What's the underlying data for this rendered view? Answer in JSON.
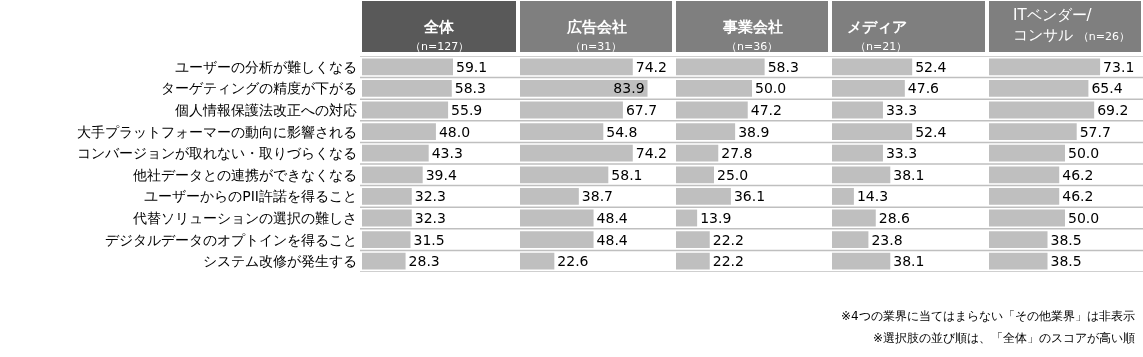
{
  "chart_data": [
    {
      "type": "bar",
      "orientation": "horizontal",
      "title": "全体",
      "subtitle": "（n=127）",
      "categories": [
        "ユーザーの分析が難しくなる",
        "ターゲティングの精度が下がる",
        "個人情報保護法改正への対応",
        "大手プラットフォーマーの動向に影響される",
        "コンバージョンが取れない・取りづらくなる",
        "他社データとの連携ができなくなる",
        "ユーザーからのPII許諾を得ること",
        "代替ソリューションの選択の難しさ",
        "デジタルデータのオプトインを得ること",
        "システム改修が発生する"
      ],
      "values": [
        59.1,
        58.3,
        55.9,
        48.0,
        43.3,
        39.4,
        32.3,
        32.3,
        31.5,
        28.3
      ],
      "value_labels": [
        "59.1",
        "58.3",
        "55.9",
        "48.0",
        "43.3",
        "39.4",
        "32.3",
        "32.3",
        "31.5",
        "28.3"
      ],
      "color": "#bfbfbf",
      "xlim": [
        0,
        100
      ],
      "tick_labels": "y",
      "legend": false
    },
    {
      "type": "bar",
      "orientation": "horizontal",
      "title": "広告会社",
      "subtitle": "（n=31）",
      "values": [
        74.2,
        83.9,
        67.7,
        54.8,
        74.2,
        58.1,
        38.7,
        48.4,
        48.4,
        22.6
      ],
      "value_labels": [
        "74.2",
        "83.9",
        "67.7",
        "54.8",
        "74.2",
        "58.1",
        "38.7",
        "48.4",
        "48.4",
        "22.6"
      ],
      "color": "#bfbfbf",
      "xlim": [
        0,
        100
      ],
      "tick_labels": false,
      "legend": false
    },
    {
      "type": "bar",
      "orientation": "horizontal",
      "title": "事業会社",
      "subtitle": "（n=36）",
      "values": [
        58.3,
        50.0,
        47.2,
        38.9,
        27.8,
        25.0,
        36.1,
        13.9,
        22.2,
        22.2
      ],
      "value_labels": [
        "58.3",
        "50.0",
        "47.2",
        "38.9",
        "27.8",
        "25.0",
        "36.1",
        "13.9",
        "22.2",
        "22.2"
      ],
      "color": "#bfbfbf",
      "xlim": [
        0,
        100
      ],
      "tick_labels": false,
      "legend": false
    },
    {
      "type": "bar",
      "orientation": "horizontal",
      "title": "メディア",
      "subtitle": "（n=21）",
      "values": [
        52.4,
        47.6,
        33.3,
        52.4,
        33.3,
        38.1,
        14.3,
        28.6,
        23.8,
        38.1
      ],
      "value_labels": [
        "52.4",
        "47.6",
        "33.3",
        "52.4",
        "33.3",
        "38.1",
        "14.3",
        "28.6",
        "23.8",
        "38.1"
      ],
      "color": "#bfbfbf",
      "xlim": [
        0,
        100
      ],
      "tick_labels": false,
      "legend": false
    },
    {
      "type": "bar",
      "orientation": "horizontal",
      "title": "ITベンダー/\nコンサル",
      "subtitle": "（n=26）",
      "values": [
        73.1,
        65.4,
        69.2,
        57.7,
        50.0,
        46.2,
        46.2,
        50.0,
        38.5,
        38.5
      ],
      "value_labels": [
        "73.1",
        "65.4",
        "69.2",
        "57.7",
        "50.0",
        "46.2",
        "46.2",
        "50.0",
        "38.5",
        "38.5"
      ],
      "color": "#bfbfbf",
      "xlim": [
        0,
        100
      ],
      "tick_labels": false,
      "legend": false,
      "annotations": [
        "※4つの業界に当てはまらない「その他業界」は非表示",
        "※選択肢の並び順は、「全体」のスコアが高い順"
      ]
    }
  ]
}
